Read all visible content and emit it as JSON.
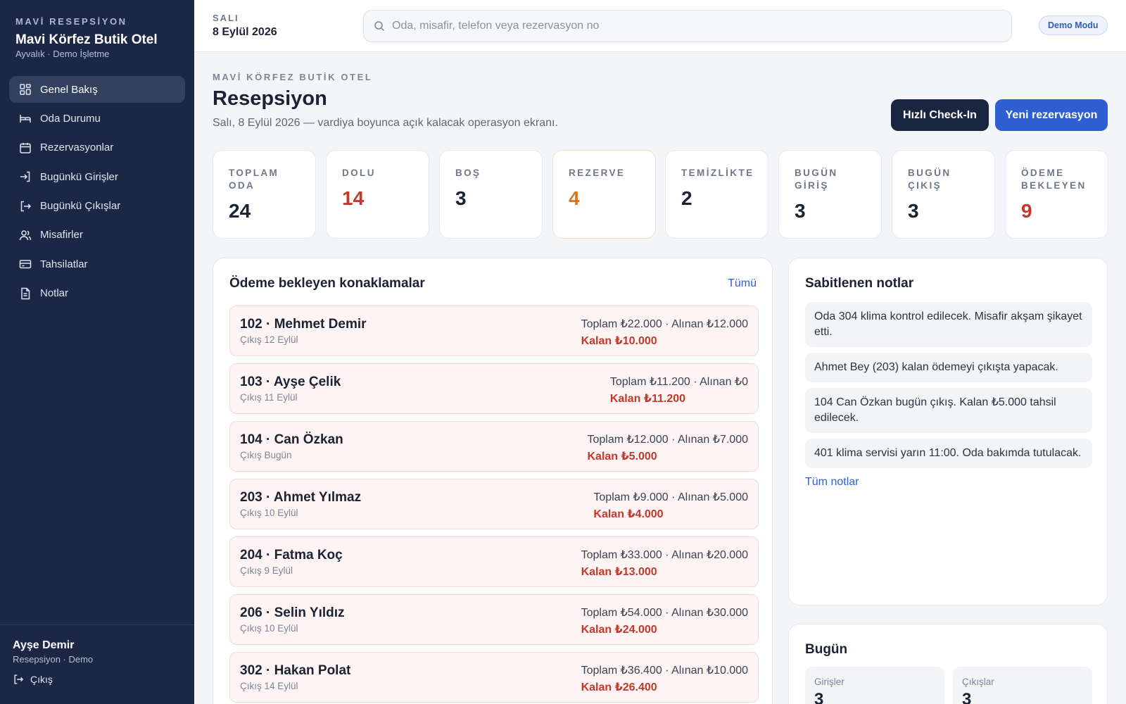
{
  "sidebar": {
    "kicker": "MAVİ RESEPSİYON",
    "hotel_name": "Mavi Körfez Butik Otel",
    "hotel_sub": "Ayvalık · Demo İşletme",
    "items": [
      {
        "label": "Genel Bakış",
        "icon": "grid-icon"
      },
      {
        "label": "Oda Durumu",
        "icon": "bed-icon"
      },
      {
        "label": "Rezervasyonlar",
        "icon": "calendar-icon"
      },
      {
        "label": "Bugünkü Girişler",
        "icon": "login-icon"
      },
      {
        "label": "Bugünkü Çıkışlar",
        "icon": "logout-icon"
      },
      {
        "label": "Misafirler",
        "icon": "users-icon"
      },
      {
        "label": "Tahsilatlar",
        "icon": "card-icon"
      },
      {
        "label": "Notlar",
        "icon": "document-icon"
      }
    ],
    "user_name": "Ayşe Demir",
    "user_role": "Resepsiyon · Demo",
    "logout_label": "Çıkış"
  },
  "topbar": {
    "day_label": "SALI",
    "date": "8 Eylül 2026",
    "search_placeholder": "Oda, misafir, telefon veya rezervasyon no",
    "badge": "Demo Modu"
  },
  "header": {
    "kicker": "MAVİ KÖRFEZ BUTİK OTEL",
    "title": "Resepsiyon",
    "description": "Salı, 8 Eylül 2026 — vardiya boyunca açık kalacak operasyon ekranı.",
    "quick_checkin": "Hızlı Check-In",
    "new_reservation": "Yeni rezervasyon"
  },
  "stats": [
    {
      "label": "TOPLAM ODA",
      "value": "24"
    },
    {
      "label": "DOLU",
      "value": "14"
    },
    {
      "label": "BOŞ",
      "value": "3"
    },
    {
      "label": "REZERVE",
      "value": "4"
    },
    {
      "label": "TEMİZLİKTE",
      "value": "2"
    },
    {
      "label": "BUGÜN GİRİŞ",
      "value": "3"
    },
    {
      "label": "BUGÜN ÇIKIŞ",
      "value": "3"
    },
    {
      "label": "ÖDEME BEKLEYEN",
      "value": "9"
    }
  ],
  "payments": {
    "title": "Ödeme bekleyen konaklamalar",
    "all_link": "Tümü",
    "rows": [
      {
        "name": "102 · Mehmet Demir",
        "checkout": "Çıkış 12 Eylül",
        "totals": "Toplam ₺22.000 · Alınan ₺12.000",
        "remaining": "Kalan ₺10.000"
      },
      {
        "name": "103 · Ayşe Çelik",
        "checkout": "Çıkış 11 Eylül",
        "totals": "Toplam ₺11.200 · Alınan ₺0",
        "remaining": "Kalan ₺11.200"
      },
      {
        "name": "104 · Can Özkan",
        "checkout": "Çıkış Bugün",
        "totals": "Toplam ₺12.000 · Alınan ₺7.000",
        "remaining": "Kalan ₺5.000"
      },
      {
        "name": "203 · Ahmet Yılmaz",
        "checkout": "Çıkış 10 Eylül",
        "totals": "Toplam ₺9.000 · Alınan ₺5.000",
        "remaining": "Kalan ₺4.000"
      },
      {
        "name": "204 · Fatma Koç",
        "checkout": "Çıkış 9 Eylül",
        "totals": "Toplam ₺33.000 · Alınan ₺20.000",
        "remaining": "Kalan ₺13.000"
      },
      {
        "name": "206 · Selin Yıldız",
        "checkout": "Çıkış 10 Eylül",
        "totals": "Toplam ₺54.000 · Alınan ₺30.000",
        "remaining": "Kalan ₺24.000"
      },
      {
        "name": "302 · Hakan Polat",
        "checkout": "Çıkış 14 Eylül",
        "totals": "Toplam ₺36.400 · Alınan ₺10.000",
        "remaining": "Kalan ₺26.400"
      }
    ]
  },
  "notes": {
    "title": "Sabitlenen notlar",
    "items": [
      "Oda 304 klima kontrol edilecek. Misafir akşam şikayet etti.",
      "Ahmet Bey (203) kalan ödemeyi çıkışta yapacak.",
      "104 Can Özkan bugün çıkış. Kalan ₺5.000 tahsil edilecek.",
      "401 klima servisi yarın 11:00. Oda bakımda tutulacak."
    ],
    "all_link": "Tüm notlar"
  },
  "today": {
    "title": "Bugün",
    "checkins_label": "Girişler",
    "checkins_value": "3",
    "checkouts_label": "Çıkışlar",
    "checkouts_value": "3"
  },
  "colors": {
    "sidebar": "#1b2745",
    "primary": "#2d5fd0",
    "dark_button": "#1a2540",
    "danger": "#c0392b",
    "warning": "#d47a1c"
  }
}
